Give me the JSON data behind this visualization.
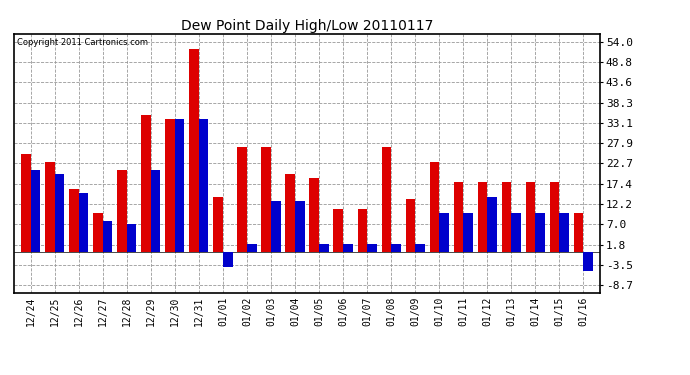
{
  "title": "Dew Point Daily High/Low 20110117",
  "copyright": "Copyright 2011 Cartronics.com",
  "dates": [
    "12/24",
    "12/25",
    "12/26",
    "12/27",
    "12/28",
    "12/29",
    "12/30",
    "12/31",
    "01/01",
    "01/02",
    "01/03",
    "01/04",
    "01/05",
    "01/06",
    "01/07",
    "01/08",
    "01/09",
    "01/10",
    "01/11",
    "01/12",
    "01/13",
    "01/14",
    "01/15",
    "01/16"
  ],
  "highs": [
    25.0,
    23.0,
    16.0,
    10.0,
    21.0,
    35.0,
    34.0,
    52.0,
    14.0,
    27.0,
    27.0,
    20.0,
    19.0,
    11.0,
    11.0,
    27.0,
    13.5,
    23.0,
    18.0,
    18.0,
    18.0,
    18.0,
    18.0,
    10.0
  ],
  "lows": [
    21.0,
    20.0,
    15.0,
    8.0,
    7.0,
    21.0,
    34.0,
    34.0,
    -4.0,
    2.0,
    13.0,
    13.0,
    2.0,
    2.0,
    2.0,
    2.0,
    2.0,
    10.0,
    10.0,
    14.0,
    10.0,
    10.0,
    10.0,
    -5.0
  ],
  "high_color": "#dd0000",
  "low_color": "#0000cc",
  "bg_color": "#ffffff",
  "plot_bg_color": "#ffffff",
  "grid_color": "#999999",
  "yticks": [
    54.0,
    48.8,
    43.6,
    38.3,
    33.1,
    27.9,
    22.7,
    17.4,
    12.2,
    7.0,
    1.8,
    -3.5,
    -8.7
  ],
  "ymin": -10.5,
  "ymax": 56.0,
  "bar_width": 0.4
}
